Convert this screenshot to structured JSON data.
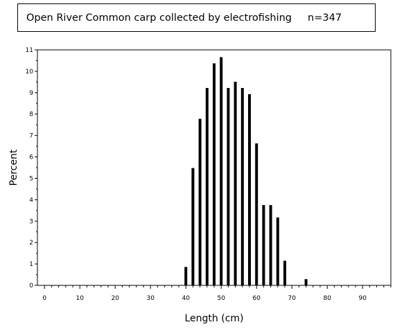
{
  "chart_data": {
    "type": "bar",
    "title": "Open River Common carp collected by electrofishing     n=347",
    "xlabel": "Length (cm)",
    "ylabel": "Percent",
    "xlim": [
      -2,
      98
    ],
    "ylim": [
      0,
      11
    ],
    "x_ticks": [
      0,
      10,
      20,
      30,
      40,
      50,
      60,
      70,
      80,
      90
    ],
    "y_ticks": [
      0,
      1,
      2,
      3,
      4,
      5,
      6,
      7,
      8,
      9,
      10,
      11
    ],
    "x": [
      40,
      42,
      44,
      46,
      48,
      50,
      52,
      54,
      56,
      58,
      60,
      62,
      64,
      66,
      68,
      74
    ],
    "values": [
      0.86,
      5.48,
      7.78,
      9.22,
      10.37,
      10.66,
      9.22,
      9.51,
      9.22,
      8.93,
      6.63,
      3.75,
      3.75,
      3.17,
      1.15,
      0.29
    ],
    "grid": false,
    "legend": "none"
  }
}
